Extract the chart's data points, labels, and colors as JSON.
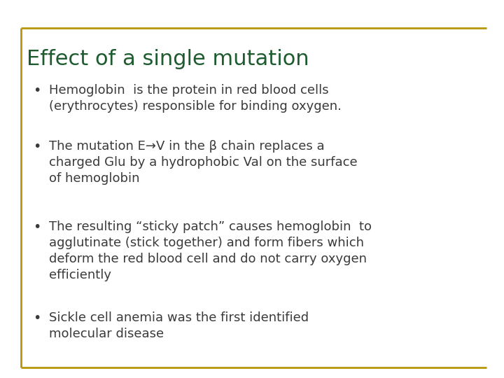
{
  "title": "Effect of a single mutation",
  "title_color": "#1E5C30",
  "title_fontsize": 22,
  "background_color": "#FFFFFF",
  "border_color": "#B8960C",
  "bullet_color": "#3A3A3A",
  "bullet_fontsize": 13.0,
  "bullets": [
    "Hemoglobin  is the protein in red blood cells\n(erythrocytes) responsible for binding oxygen.",
    "The mutation E→V in the β chain replaces a\ncharged Glu by a hydrophobic Val on the surface\nof hemoglobin",
    "The resulting “sticky patch” causes hemoglobin  to\nagglutinate (stick together) and form fibers which\ndeform the red blood cell and do not carry oxygen\nefficiently",
    "Sickle cell anemia was the first identified\nmolecular disease"
  ],
  "dot_char": "•"
}
